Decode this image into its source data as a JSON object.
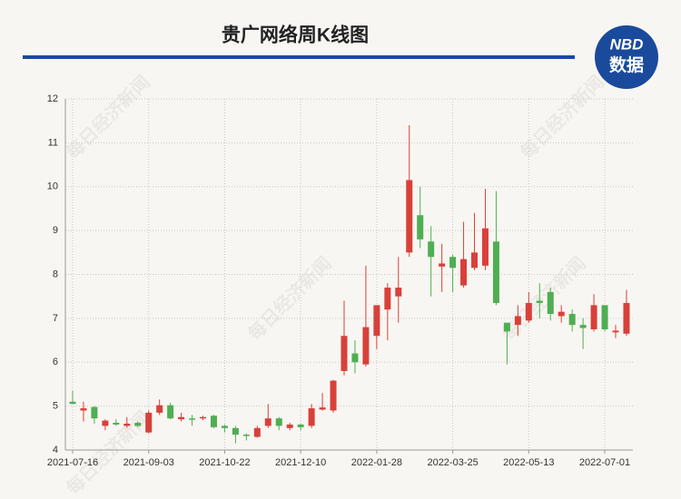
{
  "chart_data": {
    "type": "candlestick",
    "title": "贵广网络周K线图",
    "logo": [
      "NBD",
      "数据"
    ],
    "watermark": "每日经济新闻",
    "categories": [
      "2021-07-16",
      null,
      null,
      null,
      null,
      null,
      null,
      "2021-09-03",
      null,
      null,
      null,
      null,
      null,
      null,
      "2021-10-22",
      null,
      null,
      null,
      null,
      null,
      null,
      "2021-12-10",
      null,
      null,
      null,
      null,
      null,
      null,
      "2022-01-28",
      null,
      null,
      null,
      null,
      null,
      null,
      "2022-03-25",
      null,
      null,
      null,
      null,
      null,
      null,
      "2022-05-13",
      null,
      null,
      null,
      null,
      null,
      null,
      "2022-07-01",
      null,
      null
    ],
    "open": [
      5.1,
      4.9,
      4.98,
      4.55,
      4.62,
      4.55,
      4.62,
      4.4,
      4.85,
      5.02,
      4.7,
      4.72,
      4.72,
      4.78,
      4.55,
      4.5,
      4.35,
      4.3,
      4.55,
      4.72,
      4.5,
      4.58,
      4.55,
      4.92,
      4.9,
      5.8,
      6.2,
      5.95,
      6.6,
      7.2,
      7.5,
      8.5,
      9.35,
      8.75,
      8.18,
      8.4,
      7.75,
      8.15,
      8.2,
      8.75,
      6.9,
      6.85,
      6.95,
      7.4,
      7.6,
      7.05,
      7.1,
      6.85,
      6.75,
      7.3,
      6.68,
      6.65
    ],
    "high": [
      5.35,
      5.1,
      5.0,
      4.7,
      4.7,
      4.75,
      4.65,
      4.9,
      5.15,
      5.08,
      4.85,
      4.8,
      4.78,
      4.8,
      4.58,
      4.55,
      4.38,
      4.55,
      5.05,
      4.75,
      4.62,
      4.6,
      5.05,
      5.3,
      5.6,
      7.4,
      6.5,
      8.2,
      7.3,
      7.8,
      8.4,
      11.4,
      10.0,
      9.1,
      8.7,
      8.45,
      9.2,
      9.4,
      9.95,
      9.9,
      6.9,
      7.3,
      7.6,
      7.8,
      7.7,
      7.3,
      7.2,
      7.0,
      7.55,
      7.3,
      6.85,
      7.65
    ],
    "low": [
      5.05,
      4.65,
      4.6,
      4.45,
      4.55,
      4.5,
      4.52,
      4.38,
      4.8,
      4.7,
      4.65,
      4.55,
      4.68,
      4.5,
      4.4,
      4.15,
      4.22,
      4.28,
      4.5,
      4.45,
      4.45,
      4.45,
      4.5,
      4.9,
      4.85,
      5.7,
      5.75,
      5.9,
      6.3,
      6.5,
      6.9,
      8.4,
      8.6,
      7.5,
      7.6,
      7.6,
      7.7,
      8.1,
      8.1,
      7.3,
      5.95,
      6.6,
      6.9,
      7.0,
      6.95,
      6.9,
      6.7,
      6.3,
      6.7,
      6.7,
      6.55,
      6.6
    ],
    "close": [
      5.05,
      4.95,
      4.72,
      4.67,
      4.58,
      4.6,
      4.55,
      4.85,
      5.02,
      4.72,
      4.75,
      4.7,
      4.75,
      4.52,
      4.5,
      4.35,
      4.32,
      4.5,
      4.72,
      4.55,
      4.58,
      4.52,
      4.95,
      4.97,
      5.58,
      6.6,
      6.0,
      6.8,
      7.3,
      7.7,
      7.7,
      10.15,
      8.8,
      8.4,
      8.25,
      8.15,
      8.35,
      8.5,
      9.05,
      7.35,
      6.7,
      7.05,
      7.35,
      7.35,
      7.1,
      7.15,
      6.85,
      6.78,
      7.3,
      6.75,
      6.72,
      7.35
    ],
    "up_color": "#d8403a",
    "down_color": "#4fae52",
    "ylim": [
      4,
      12
    ],
    "yticks": [
      4,
      5,
      6,
      7,
      8,
      9,
      10,
      11,
      12
    ],
    "grid": true
  }
}
